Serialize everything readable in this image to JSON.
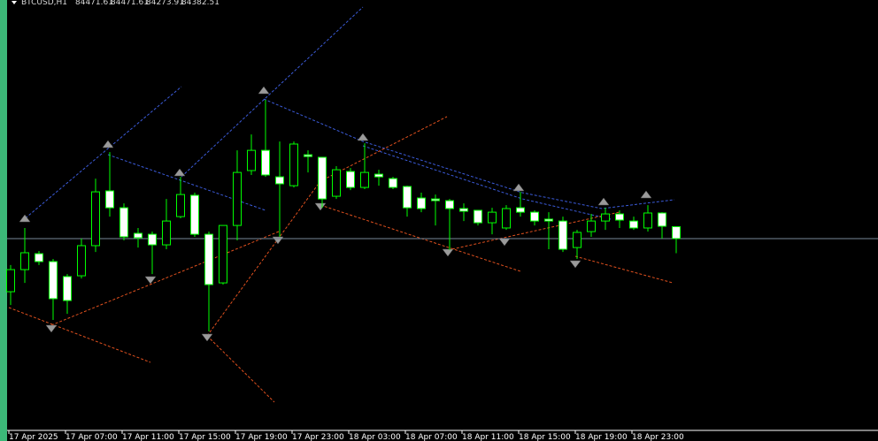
{
  "chart_data": {
    "type": "candlestick",
    "title": "BTCUSD,H1",
    "categories": [
      "17 Apr 2025",
      null,
      null,
      null,
      "17 Apr 07:00",
      null,
      null,
      null,
      "17 Apr 11:00",
      null,
      null,
      null,
      "17 Apr 15:00",
      null,
      null,
      null,
      "17 Apr 19:00",
      null,
      null,
      null,
      "17 Apr 23:00",
      null,
      null,
      null,
      "18 Apr 03:00",
      null,
      null,
      null,
      "18 Apr 07:00",
      null,
      null,
      null,
      "18 Apr 11:00",
      null,
      null,
      null,
      "18 Apr 15:00",
      null,
      null,
      null,
      "18 Apr 19:00",
      null,
      null,
      null,
      "18 Apr 23:00",
      null,
      null,
      null
    ],
    "open": [
      83986,
      84151,
      84270,
      84211,
      84099,
      84105,
      84330,
      84739,
      84613,
      84422,
      84415,
      84336,
      84547,
      84706,
      84415,
      84052,
      84481,
      84891,
      85042,
      84844,
      84778,
      85009,
      84990,
      84699,
      84884,
      84765,
      84864,
      84831,
      84772,
      84686,
      84679,
      84666,
      84607,
      84594,
      84501,
      84462,
      84613,
      84580,
      84528,
      84514,
      84316,
      84435,
      84514,
      84567,
      84514,
      84462,
      84574,
      84471.61
    ],
    "high": [
      84185,
      84462,
      84290,
      84231,
      84118,
      84383,
      84831,
      85029,
      84646,
      84462,
      84435,
      84679,
      84844,
      84726,
      84435,
      84481,
      85042,
      85161,
      85419,
      85108,
      85108,
      85042,
      84990,
      84924,
      84910,
      85095,
      84897,
      84844,
      84778,
      84726,
      84712,
      84679,
      84646,
      84594,
      84613,
      84633,
      84732,
      84594,
      84580,
      84547,
      84448,
      84567,
      84613,
      84594,
      84547,
      84633,
      84580,
      84471.61
    ],
    "low": [
      83887,
      84052,
      84185,
      83775,
      83821,
      84085,
      84283,
      84547,
      84369,
      84316,
      84118,
      84303,
      84534,
      84396,
      83689,
      84039,
      84369,
      84858,
      84844,
      84396,
      84765,
      84877,
      84613,
      84679,
      84745,
      84752,
      84778,
      84752,
      84547,
      84580,
      84481,
      84297,
      84514,
      84481,
      84415,
      84448,
      84547,
      84481,
      84303,
      84283,
      84231,
      84396,
      84448,
      84462,
      84448,
      84435,
      84383,
      84273.91
    ],
    "close": [
      84151,
      84277,
      84211,
      83934,
      83920,
      84330,
      84732,
      84613,
      84396,
      84389,
      84336,
      84514,
      84712,
      84415,
      84039,
      84481,
      84877,
      85042,
      84858,
      84792,
      85089,
      84996,
      84679,
      84897,
      84765,
      84877,
      84844,
      84765,
      84613,
      84607,
      84666,
      84607,
      84587,
      84501,
      84580,
      84607,
      84580,
      84514,
      84514,
      84303,
      84429,
      84514,
      84567,
      84521,
      84462,
      84574,
      84475,
      84382.51
    ],
    "ylim": [
      82950,
      86165
    ],
    "up_color": "#00ff00",
    "down_color": "#ffffff",
    "bid_line_color": "#778899"
  }
}
